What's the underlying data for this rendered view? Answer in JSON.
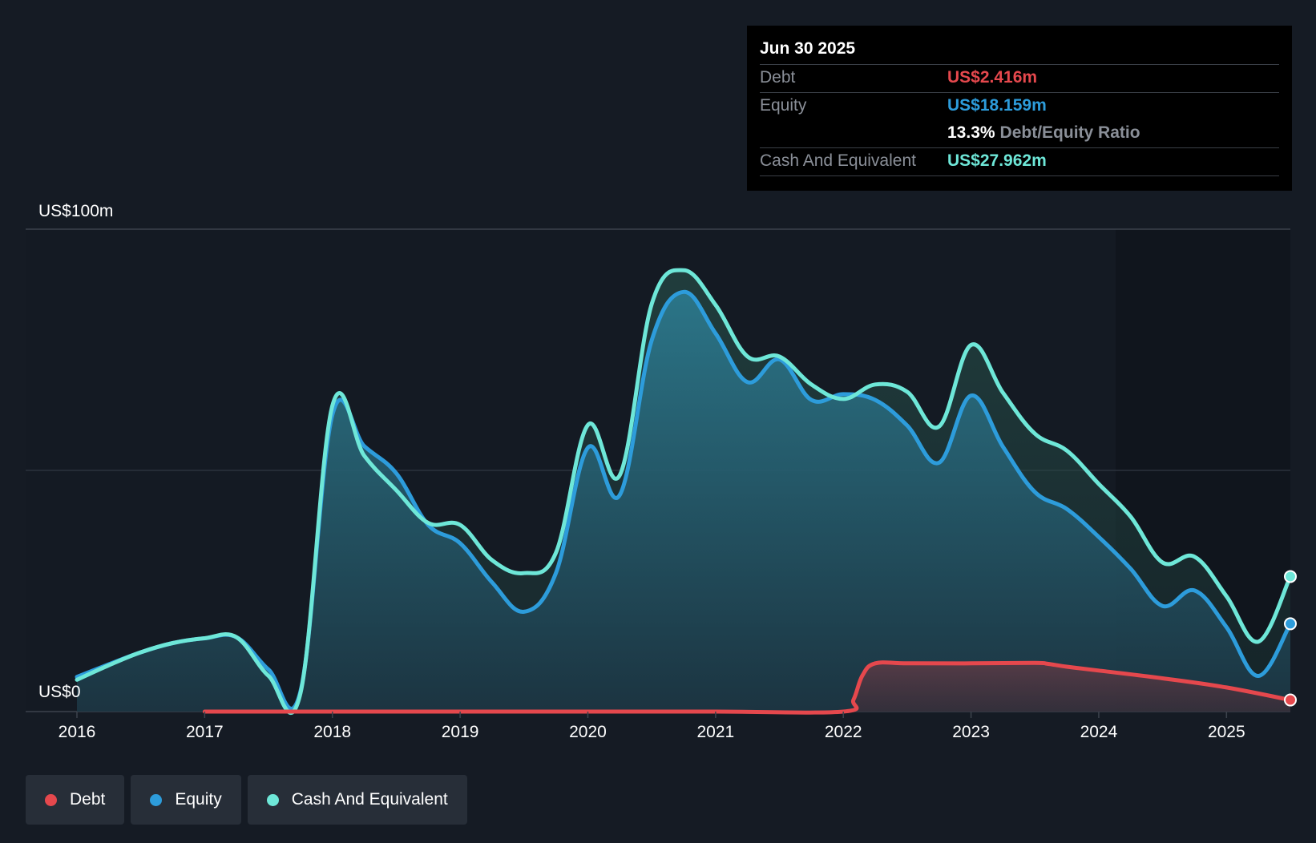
{
  "tooltip": {
    "date": "Jun 30 2025",
    "debt_label": "Debt",
    "debt_value": "US$2.416m",
    "equity_label": "Equity",
    "equity_value": "US$18.159m",
    "ratio_value": "13.3%",
    "ratio_label": "Debt/Equity Ratio",
    "cash_label": "Cash And Equivalent",
    "cash_value": "US$27.962m"
  },
  "legend": {
    "debt": "Debt",
    "equity": "Equity",
    "cash": "Cash And Equivalent"
  },
  "colors": {
    "debt": "#e5484d",
    "equity": "#2d9cdb",
    "cash": "#6ee7d8",
    "background": "#151b24"
  },
  "chart_data": {
    "type": "area",
    "title": "",
    "ylabel": "",
    "ylim": [
      0,
      100
    ],
    "y_tick_labels": [
      {
        "value": 100,
        "label": "US$100m"
      },
      {
        "value": 0,
        "label": "US$0"
      }
    ],
    "x_range": [
      2016.0,
      2025.5
    ],
    "x_ticks": [
      "2016",
      "2017",
      "2018",
      "2019",
      "2020",
      "2021",
      "2022",
      "2023",
      "2024",
      "2025"
    ],
    "series": [
      {
        "name": "Equity",
        "points": [
          [
            2016.0,
            7.2
          ],
          [
            2016.25,
            9.8
          ],
          [
            2016.5,
            12.3
          ],
          [
            2016.75,
            14.2
          ],
          [
            2017.0,
            15.2
          ],
          [
            2017.25,
            15.4
          ],
          [
            2017.5,
            8.7
          ],
          [
            2017.75,
            4.2
          ],
          [
            2018.0,
            61.5
          ],
          [
            2018.25,
            55.0
          ],
          [
            2018.5,
            49.4
          ],
          [
            2018.75,
            38.7
          ],
          [
            2019.0,
            34.9
          ],
          [
            2019.25,
            26.8
          ],
          [
            2019.5,
            20.7
          ],
          [
            2019.75,
            28.7
          ],
          [
            2020.0,
            54.7
          ],
          [
            2020.25,
            44.9
          ],
          [
            2020.5,
            77.0
          ],
          [
            2020.75,
            87.0
          ],
          [
            2021.0,
            78.4
          ],
          [
            2021.25,
            68.3
          ],
          [
            2021.5,
            73.0
          ],
          [
            2021.75,
            64.6
          ],
          [
            2022.0,
            65.8
          ],
          [
            2022.25,
            64.6
          ],
          [
            2022.5,
            59.3
          ],
          [
            2022.75,
            51.6
          ],
          [
            2023.0,
            65.5
          ],
          [
            2023.25,
            54.9
          ],
          [
            2023.5,
            45.5
          ],
          [
            2023.75,
            42.0
          ],
          [
            2024.0,
            36.2
          ],
          [
            2024.25,
            29.6
          ],
          [
            2024.5,
            21.9
          ],
          [
            2024.75,
            25.1
          ],
          [
            2025.0,
            17.5
          ],
          [
            2025.25,
            7.4
          ],
          [
            2025.5,
            18.2
          ]
        ]
      },
      {
        "name": "Cash And Equivalent",
        "points": [
          [
            2016.0,
            6.6
          ],
          [
            2016.25,
            9.6
          ],
          [
            2016.5,
            12.3
          ],
          [
            2016.75,
            14.2
          ],
          [
            2017.0,
            15.2
          ],
          [
            2017.25,
            15.4
          ],
          [
            2017.5,
            7.4
          ],
          [
            2017.75,
            3.8
          ],
          [
            2018.0,
            63.4
          ],
          [
            2018.25,
            53.0
          ],
          [
            2018.5,
            45.9
          ],
          [
            2018.75,
            39.1
          ],
          [
            2019.0,
            38.7
          ],
          [
            2019.25,
            31.4
          ],
          [
            2019.5,
            28.7
          ],
          [
            2019.75,
            32.9
          ],
          [
            2020.0,
            59.4
          ],
          [
            2020.25,
            49.0
          ],
          [
            2020.5,
            84.5
          ],
          [
            2020.75,
            91.5
          ],
          [
            2021.0,
            84.3
          ],
          [
            2021.25,
            73.6
          ],
          [
            2021.5,
            73.6
          ],
          [
            2021.75,
            67.8
          ],
          [
            2022.0,
            64.8
          ],
          [
            2022.25,
            67.8
          ],
          [
            2022.5,
            66.3
          ],
          [
            2022.75,
            59.1
          ],
          [
            2023.0,
            76.0
          ],
          [
            2023.25,
            66.1
          ],
          [
            2023.5,
            57.6
          ],
          [
            2023.75,
            54.1
          ],
          [
            2024.0,
            47.2
          ],
          [
            2024.25,
            40.4
          ],
          [
            2024.5,
            30.9
          ],
          [
            2024.75,
            32.1
          ],
          [
            2025.0,
            23.9
          ],
          [
            2025.25,
            14.5
          ],
          [
            2025.5,
            28.0
          ]
        ]
      },
      {
        "name": "Debt",
        "points": [
          [
            2017.0,
            0
          ],
          [
            2018.0,
            0
          ],
          [
            2019.0,
            0
          ],
          [
            2020.0,
            0
          ],
          [
            2021.0,
            0
          ],
          [
            2022.0,
            0
          ],
          [
            2022.08,
            2.5
          ],
          [
            2022.15,
            7.5
          ],
          [
            2022.25,
            10.0
          ],
          [
            2022.5,
            10.0
          ],
          [
            2023.0,
            10.0
          ],
          [
            2023.5,
            10.1
          ],
          [
            2023.6,
            9.9
          ],
          [
            2023.75,
            9.3
          ],
          [
            2024.0,
            8.5
          ],
          [
            2024.5,
            6.9
          ],
          [
            2025.0,
            5.0
          ],
          [
            2025.5,
            2.4
          ]
        ]
      }
    ]
  }
}
